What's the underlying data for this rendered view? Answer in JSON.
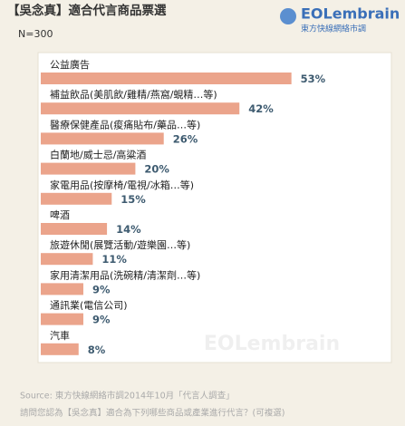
{
  "chart_data": {
    "type": "bar",
    "title": "【吳念真】適合代言商品票選",
    "subtitle": "N=300",
    "logo": "EOLembrain",
    "logo_subtitle": "東方快線網絡市調",
    "categories": [
      "公益廣告",
      "補益飲品(美肌飲/雞精/燕窩/蜆精…等)",
      "醫療保健產品(痠痛貼布/藥品…等)",
      "白蘭地/威士忌/高粱酒",
      "家電用品(按摩椅/電視/冰箱…等)",
      "啤酒",
      "旅遊休閒(展覽活動/遊樂園…等)",
      "家用清潔用品(洗碗精/清潔劑…等)",
      "通訊業(電信公司)",
      "汽車"
    ],
    "values": [
      53,
      42,
      26,
      20,
      15,
      14,
      11,
      9,
      9,
      8
    ],
    "value_labels": [
      "53%",
      "42%",
      "26%",
      "20%",
      "15%",
      "14%",
      "11%",
      "9%",
      "9%",
      "8%"
    ],
    "color": "#eba48b",
    "source": "Source: 東方快線網絡市調2014年10月「代言人調查」",
    "question": "請問您認為【吳念真】適合為下列哪些商品或產業進行代言？(可複選)"
  }
}
